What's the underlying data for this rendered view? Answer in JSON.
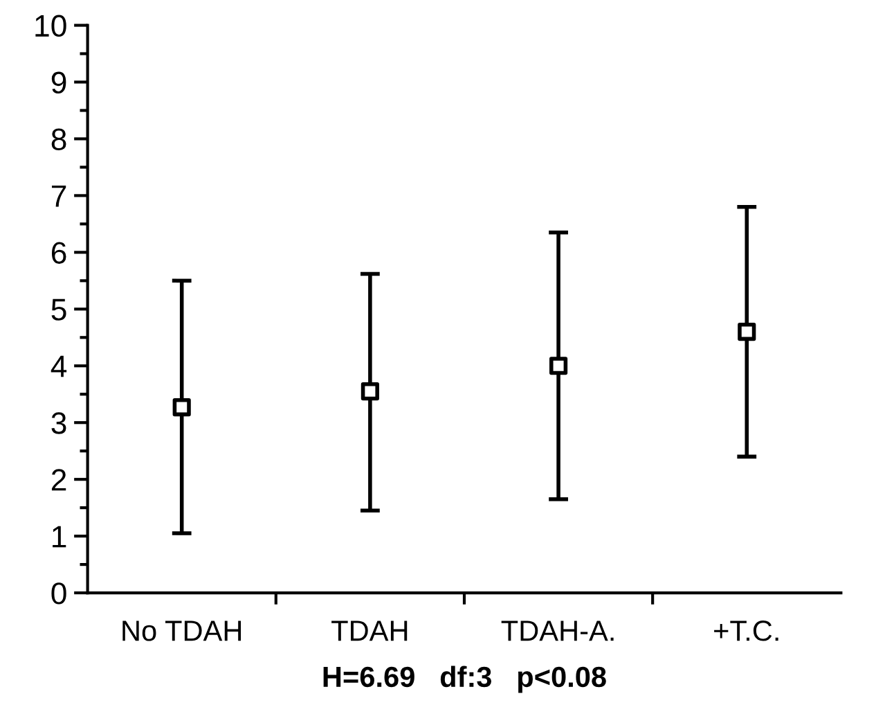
{
  "chart_data": {
    "type": "scatter",
    "xlabel": "H=6.69   df:3   p<0.08",
    "categories": [
      "No TDAH",
      "TDAH",
      "TDAH-A.",
      "+T.C."
    ],
    "values": [
      3.27,
      3.55,
      4.0,
      4.6
    ],
    "errors": [
      [
        1.05,
        5.5
      ],
      [
        1.45,
        5.62
      ],
      [
        1.65,
        6.35
      ],
      [
        2.4,
        6.8
      ]
    ],
    "color": "#000000",
    "marker": "square",
    "grid": false,
    "ylim": [
      0,
      10
    ],
    "yticks": [
      0,
      {
        "value": 0.5,
        "label": null
      },
      1,
      {
        "value": 1.5,
        "label": null
      },
      2,
      {
        "value": 2.5,
        "label": null
      },
      3,
      {
        "value": 3.5,
        "label": null
      },
      4,
      {
        "value": 4.5,
        "label": null
      },
      5,
      {
        "value": 5.5,
        "label": null
      },
      6,
      {
        "value": 6.5,
        "label": null
      },
      7,
      {
        "value": 7.5,
        "label": null
      },
      8,
      {
        "value": 8.5,
        "label": null
      },
      9,
      {
        "value": 9.5,
        "label": null
      },
      10
    ]
  }
}
